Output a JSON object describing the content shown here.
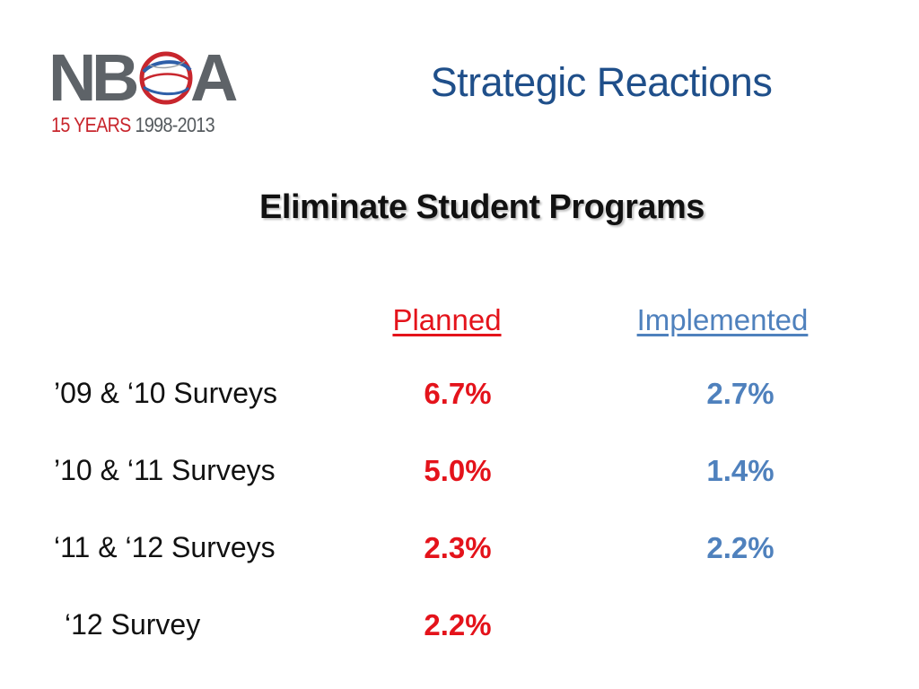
{
  "logo": {
    "letters": [
      "N",
      "B",
      "A"
    ],
    "tagline_years": "15 YEARS",
    "tagline_range": "1998-2013",
    "colors": {
      "grey": "#5e6368",
      "red": "#c8262d",
      "blue": "#2f5fa8"
    }
  },
  "title": "Strategic Reactions",
  "subtitle": "Eliminate Student Programs",
  "columns": {
    "planned": "Planned",
    "implemented": "Implemented"
  },
  "rows": [
    {
      "label": "’09 & ‘10 Surveys",
      "planned": "6.7%",
      "implemented": "2.7%"
    },
    {
      "label": "’10 & ‘11 Surveys",
      "planned": "5.0%",
      "implemented": "1.4%"
    },
    {
      "label": "‘11 & ‘12 Surveys",
      "planned": "2.3%",
      "implemented": "2.2%"
    },
    {
      "label": "‘12 Survey",
      "planned": "2.2%",
      "implemented": ""
    }
  ],
  "colors": {
    "title": "#1f4f8a",
    "planned": "#e4131b",
    "implemented": "#4f81bd"
  }
}
